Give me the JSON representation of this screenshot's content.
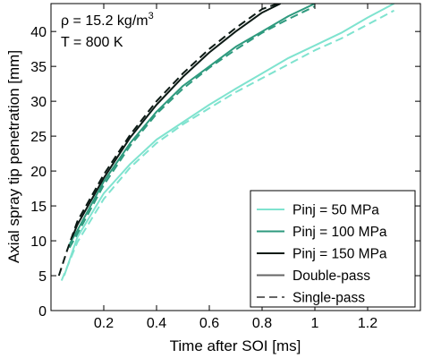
{
  "chart_data": {
    "type": "line",
    "xlabel": "Time after SOI [ms]",
    "ylabel": "Axial spray tip penetration [mm]",
    "xlim": [
      0,
      1.4
    ],
    "ylim": [
      0,
      44
    ],
    "x_ticks": [
      "0.2",
      "0.4",
      "0.6",
      "0.8",
      "1",
      "1.2"
    ],
    "y_ticks": [
      "0",
      "5",
      "10",
      "15",
      "20",
      "25",
      "30",
      "35",
      "40"
    ],
    "grid": false,
    "legend_position": "bottom-right",
    "annotations": {
      "line1_prefix": "ρ = 15.2 kg/m",
      "line1_sup": "3",
      "line2": "T = 800 K"
    },
    "legend": [
      {
        "label": "Pinj = 50 MPa",
        "color": "#7fe3cf",
        "dash": "solid"
      },
      {
        "label": "Pinj = 100 MPa",
        "color": "#2e9a7e",
        "dash": "solid"
      },
      {
        "label": "Pinj = 150 MPa",
        "color": "#0c1a15",
        "dash": "solid"
      },
      {
        "label": "Double-pass",
        "color": "#666666",
        "dash": "solid"
      },
      {
        "label": "Single-pass",
        "color": "#666666",
        "dash": "dashed"
      }
    ],
    "series": [
      {
        "pinj": "50 MPa",
        "mode": "Double-pass",
        "color": "#7fe3cf",
        "dash": "solid",
        "x": [
          0.05,
          0.1,
          0.2,
          0.3,
          0.4,
          0.5,
          0.6,
          0.7,
          0.8,
          0.9,
          1.0,
          1.1,
          1.2,
          1.3
        ],
        "y": [
          5.0,
          10.5,
          16.8,
          21.0,
          24.5,
          27.0,
          29.5,
          31.8,
          34.0,
          36.2,
          38.0,
          39.8,
          42.0,
          44.0
        ]
      },
      {
        "pinj": "50 MPa",
        "mode": "Single-pass",
        "color": "#7fe3cf",
        "dash": "dashed",
        "x": [
          0.04,
          0.1,
          0.2,
          0.3,
          0.4,
          0.5,
          0.6,
          0.7,
          0.8,
          0.9,
          1.0,
          1.1,
          1.2,
          1.3
        ],
        "y": [
          4.3,
          9.8,
          16.0,
          20.5,
          24.0,
          26.7,
          29.0,
          31.3,
          33.3,
          35.3,
          37.3,
          39.0,
          41.0,
          43.0
        ]
      },
      {
        "pinj": "100 MPa",
        "mode": "Double-pass",
        "color": "#2e9a7e",
        "dash": "solid",
        "x": [
          0.07,
          0.1,
          0.2,
          0.3,
          0.4,
          0.5,
          0.6,
          0.7,
          0.8,
          0.9,
          1.0
        ],
        "y": [
          9.5,
          11.5,
          18.5,
          24.0,
          28.5,
          32.2,
          35.0,
          37.8,
          40.0,
          42.2,
          44.0
        ]
      },
      {
        "pinj": "100 MPa",
        "mode": "Single-pass",
        "color": "#2e9a7e",
        "dash": "dashed",
        "x": [
          0.07,
          0.1,
          0.2,
          0.3,
          0.4,
          0.5,
          0.6,
          0.7,
          0.8,
          0.9,
          1.0
        ],
        "y": [
          9.0,
          11.0,
          18.0,
          23.6,
          28.2,
          31.8,
          34.8,
          37.4,
          39.8,
          41.8,
          43.6
        ]
      },
      {
        "pinj": "150 MPa",
        "mode": "Double-pass",
        "color": "#0c1a15",
        "dash": "solid",
        "x": [
          0.08,
          0.1,
          0.2,
          0.3,
          0.4,
          0.5,
          0.6,
          0.7,
          0.8,
          0.87
        ],
        "y": [
          10.5,
          12.3,
          19.0,
          24.8,
          29.5,
          33.5,
          37.0,
          40.0,
          42.7,
          44.0
        ]
      },
      {
        "pinj": "150 MPa",
        "mode": "Single-pass",
        "color": "#0c1a15",
        "dash": "dashed",
        "x": [
          0.03,
          0.06,
          0.1,
          0.2,
          0.3,
          0.4,
          0.5,
          0.6,
          0.7,
          0.8,
          0.86
        ],
        "y": [
          5.0,
          8.5,
          12.8,
          19.5,
          25.2,
          30.0,
          34.0,
          37.5,
          40.5,
          43.2,
          44.0
        ]
      }
    ]
  }
}
